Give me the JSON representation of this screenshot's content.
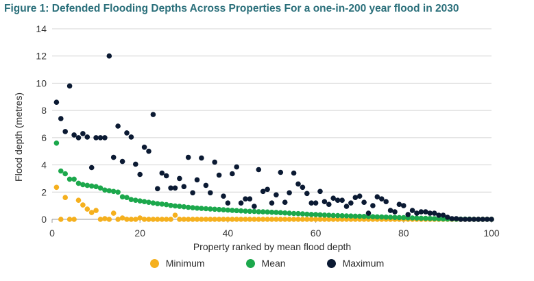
{
  "chart_data": {
    "type": "scatter",
    "title": "Figure 1: Defended Flooding Depths Across Properties For a one-in-200 year flood in 2030",
    "xlabel": "Property ranked by mean flood depth",
    "ylabel": "Flood depth (metres)",
    "xlim": [
      0,
      100
    ],
    "ylim": [
      0,
      14
    ],
    "xticks": [
      0,
      20,
      40,
      60,
      80,
      100
    ],
    "yticks": [
      0,
      2,
      4,
      6,
      8,
      10,
      12,
      14
    ],
    "grid": "horizontal",
    "legend_position": "bottom",
    "series": [
      {
        "name": "Minimum",
        "color": "#f5b01e",
        "points": [
          [
            1,
            2.35
          ],
          [
            2,
            0.0
          ],
          [
            3,
            1.6
          ],
          [
            4,
            0.0
          ],
          [
            5,
            0.0
          ],
          [
            6,
            1.4
          ],
          [
            7,
            1.05
          ],
          [
            8,
            0.75
          ],
          [
            9,
            0.5
          ],
          [
            10,
            0.65
          ],
          [
            11,
            0.0
          ],
          [
            12,
            0.05
          ],
          [
            13,
            0.0
          ],
          [
            14,
            0.45
          ],
          [
            15,
            0.0
          ],
          [
            16,
            0.1
          ],
          [
            17,
            0.0
          ],
          [
            18,
            0.0
          ],
          [
            19,
            0.0
          ],
          [
            20,
            0.1
          ],
          [
            21,
            0.0
          ],
          [
            22,
            0.0
          ],
          [
            23,
            0.0
          ],
          [
            24,
            0.0
          ],
          [
            25,
            0.0
          ],
          [
            26,
            0.0
          ],
          [
            27,
            0.0
          ],
          [
            28,
            0.3
          ],
          [
            29,
            0.0
          ],
          [
            30,
            0.0
          ],
          [
            31,
            0.0
          ],
          [
            32,
            0.0
          ],
          [
            33,
            0.0
          ],
          [
            34,
            0.0
          ],
          [
            35,
            0.0
          ],
          [
            36,
            0.0
          ],
          [
            37,
            0.0
          ],
          [
            38,
            0.0
          ],
          [
            39,
            0.0
          ],
          [
            40,
            0.0
          ],
          [
            41,
            0.0
          ],
          [
            42,
            0.0
          ],
          [
            43,
            0.0
          ],
          [
            44,
            0.0
          ],
          [
            45,
            0.0
          ],
          [
            46,
            0.0
          ],
          [
            47,
            0.0
          ],
          [
            48,
            0.0
          ],
          [
            49,
            0.0
          ],
          [
            50,
            0.0
          ],
          [
            51,
            0.0
          ],
          [
            52,
            0.0
          ],
          [
            53,
            0.0
          ],
          [
            54,
            0.0
          ],
          [
            55,
            0.0
          ],
          [
            56,
            0.0
          ],
          [
            57,
            0.0
          ],
          [
            58,
            0.0
          ],
          [
            59,
            0.0
          ],
          [
            60,
            0.0
          ],
          [
            61,
            0.0
          ],
          [
            62,
            0.0
          ],
          [
            63,
            0.0
          ],
          [
            64,
            0.0
          ],
          [
            65,
            0.0
          ],
          [
            66,
            0.0
          ],
          [
            67,
            0.0
          ],
          [
            68,
            0.0
          ],
          [
            69,
            0.0
          ],
          [
            70,
            0.0
          ],
          [
            71,
            0.0
          ],
          [
            72,
            0.0
          ],
          [
            73,
            0.0
          ],
          [
            74,
            0.0
          ],
          [
            75,
            0.0
          ],
          [
            76,
            0.0
          ],
          [
            77,
            0.0
          ],
          [
            78,
            0.0
          ],
          [
            79,
            0.0
          ],
          [
            80,
            0.0
          ],
          [
            81,
            0.0
          ],
          [
            82,
            0.0
          ],
          [
            83,
            0.0
          ],
          [
            84,
            0.0
          ],
          [
            85,
            0.0
          ],
          [
            86,
            0.0
          ],
          [
            87,
            0.0
          ],
          [
            88,
            0.0
          ],
          [
            89,
            0.0
          ],
          [
            90,
            0.0
          ],
          [
            91,
            0.0
          ],
          [
            92,
            0.0
          ],
          [
            93,
            0.0
          ],
          [
            94,
            0.0
          ],
          [
            95,
            0.0
          ],
          [
            96,
            0.0
          ],
          [
            97,
            0.0
          ],
          [
            98,
            0.0
          ],
          [
            99,
            0.0
          ],
          [
            100,
            0.0
          ]
        ]
      },
      {
        "name": "Mean",
        "color": "#1ca84c",
        "points": [
          [
            1,
            5.6
          ],
          [
            2,
            3.55
          ],
          [
            3,
            3.35
          ],
          [
            4,
            2.95
          ],
          [
            5,
            2.95
          ],
          [
            6,
            2.65
          ],
          [
            7,
            2.55
          ],
          [
            8,
            2.5
          ],
          [
            9,
            2.45
          ],
          [
            10,
            2.4
          ],
          [
            11,
            2.3
          ],
          [
            12,
            2.15
          ],
          [
            13,
            2.1
          ],
          [
            14,
            2.05
          ],
          [
            15,
            2.0
          ],
          [
            16,
            1.65
          ],
          [
            17,
            1.6
          ],
          [
            18,
            1.45
          ],
          [
            19,
            1.4
          ],
          [
            20,
            1.35
          ],
          [
            21,
            1.3
          ],
          [
            22,
            1.25
          ],
          [
            23,
            1.2
          ],
          [
            24,
            1.15
          ],
          [
            25,
            1.12
          ],
          [
            26,
            1.08
          ],
          [
            27,
            1.02
          ],
          [
            28,
            0.98
          ],
          [
            29,
            0.95
          ],
          [
            30,
            0.92
          ],
          [
            31,
            0.88
          ],
          [
            32,
            0.85
          ],
          [
            33,
            0.82
          ],
          [
            34,
            0.8
          ],
          [
            35,
            0.78
          ],
          [
            36,
            0.76
          ],
          [
            37,
            0.74
          ],
          [
            38,
            0.72
          ],
          [
            39,
            0.7
          ],
          [
            40,
            0.68
          ],
          [
            41,
            0.66
          ],
          [
            42,
            0.64
          ],
          [
            43,
            0.62
          ],
          [
            44,
            0.6
          ],
          [
            45,
            0.59
          ],
          [
            46,
            0.58
          ],
          [
            47,
            0.56
          ],
          [
            48,
            0.55
          ],
          [
            49,
            0.54
          ],
          [
            50,
            0.52
          ],
          [
            51,
            0.51
          ],
          [
            52,
            0.49
          ],
          [
            53,
            0.47
          ],
          [
            54,
            0.45
          ],
          [
            55,
            0.43
          ],
          [
            56,
            0.42
          ],
          [
            57,
            0.4
          ],
          [
            58,
            0.38
          ],
          [
            59,
            0.36
          ],
          [
            60,
            0.35
          ],
          [
            61,
            0.33
          ],
          [
            62,
            0.31
          ],
          [
            63,
            0.3
          ],
          [
            64,
            0.28
          ],
          [
            65,
            0.27
          ],
          [
            66,
            0.26
          ],
          [
            67,
            0.25
          ],
          [
            68,
            0.24
          ],
          [
            69,
            0.23
          ],
          [
            70,
            0.22
          ],
          [
            71,
            0.21
          ],
          [
            72,
            0.2
          ],
          [
            73,
            0.19
          ],
          [
            74,
            0.18
          ],
          [
            75,
            0.17
          ],
          [
            76,
            0.16
          ],
          [
            77,
            0.15
          ],
          [
            78,
            0.14
          ],
          [
            79,
            0.13
          ],
          [
            80,
            0.12
          ],
          [
            81,
            0.11
          ],
          [
            82,
            0.1
          ],
          [
            83,
            0.09
          ],
          [
            84,
            0.08
          ],
          [
            85,
            0.07
          ],
          [
            86,
            0.06
          ],
          [
            87,
            0.05
          ],
          [
            88,
            0.04
          ],
          [
            89,
            0.03
          ],
          [
            90,
            0.02
          ],
          [
            91,
            0.02
          ],
          [
            92,
            0.01
          ],
          [
            93,
            0.01
          ],
          [
            94,
            0.01
          ],
          [
            95,
            0.01
          ],
          [
            96,
            0.0
          ],
          [
            97,
            0.0
          ],
          [
            98,
            0.0
          ],
          [
            99,
            0.0
          ],
          [
            100,
            0.0
          ]
        ]
      },
      {
        "name": "Maximum",
        "color": "#0b1a33",
        "points": [
          [
            1,
            8.6
          ],
          [
            2,
            7.4
          ],
          [
            3,
            6.45
          ],
          [
            4,
            9.8
          ],
          [
            5,
            6.2
          ],
          [
            6,
            6.0
          ],
          [
            7,
            6.3
          ],
          [
            8,
            6.05
          ],
          [
            9,
            3.8
          ],
          [
            10,
            6.0
          ],
          [
            11,
            6.0
          ],
          [
            12,
            6.0
          ],
          [
            13,
            12.0
          ],
          [
            14,
            4.55
          ],
          [
            15,
            6.85
          ],
          [
            16,
            4.25
          ],
          [
            17,
            6.35
          ],
          [
            18,
            6.05
          ],
          [
            19,
            4.05
          ],
          [
            20,
            3.3
          ],
          [
            21,
            5.3
          ],
          [
            22,
            5.0
          ],
          [
            23,
            7.7
          ],
          [
            24,
            2.25
          ],
          [
            25,
            3.4
          ],
          [
            26,
            3.2
          ],
          [
            27,
            2.3
          ],
          [
            28,
            2.3
          ],
          [
            29,
            3.0
          ],
          [
            30,
            2.4
          ],
          [
            31,
            4.55
          ],
          [
            32,
            1.95
          ],
          [
            33,
            2.9
          ],
          [
            34,
            4.5
          ],
          [
            35,
            2.5
          ],
          [
            36,
            1.95
          ],
          [
            37,
            4.2
          ],
          [
            38,
            3.25
          ],
          [
            39,
            1.7
          ],
          [
            40,
            1.2
          ],
          [
            41,
            3.35
          ],
          [
            42,
            3.85
          ],
          [
            43,
            1.2
          ],
          [
            44,
            1.5
          ],
          [
            45,
            1.5
          ],
          [
            46,
            0.95
          ],
          [
            47,
            3.65
          ],
          [
            48,
            2.05
          ],
          [
            49,
            2.2
          ],
          [
            50,
            1.2
          ],
          [
            51,
            1.8
          ],
          [
            52,
            3.45
          ],
          [
            53,
            1.25
          ],
          [
            54,
            1.95
          ],
          [
            55,
            3.4
          ],
          [
            56,
            2.6
          ],
          [
            57,
            2.35
          ],
          [
            58,
            1.9
          ],
          [
            59,
            1.2
          ],
          [
            60,
            1.2
          ],
          [
            61,
            2.05
          ],
          [
            62,
            1.3
          ],
          [
            63,
            1.1
          ],
          [
            64,
            1.55
          ],
          [
            65,
            1.4
          ],
          [
            66,
            1.4
          ],
          [
            67,
            0.95
          ],
          [
            68,
            1.2
          ],
          [
            69,
            1.6
          ],
          [
            70,
            1.7
          ],
          [
            71,
            1.25
          ],
          [
            72,
            0.45
          ],
          [
            73,
            1.0
          ],
          [
            74,
            1.65
          ],
          [
            75,
            1.5
          ],
          [
            76,
            1.3
          ],
          [
            77,
            0.65
          ],
          [
            78,
            0.55
          ],
          [
            79,
            1.1
          ],
          [
            80,
            1.0
          ],
          [
            81,
            0.35
          ],
          [
            82,
            0.65
          ],
          [
            83,
            0.45
          ],
          [
            84,
            0.55
          ],
          [
            85,
            0.55
          ],
          [
            86,
            0.45
          ],
          [
            87,
            0.45
          ],
          [
            88,
            0.3
          ],
          [
            89,
            0.3
          ],
          [
            90,
            0.15
          ],
          [
            91,
            0.05
          ],
          [
            92,
            0.05
          ],
          [
            93,
            0.0
          ],
          [
            94,
            0.0
          ],
          [
            95,
            0.0
          ],
          [
            96,
            0.0
          ],
          [
            97,
            0.0
          ],
          [
            98,
            0.0
          ],
          [
            99,
            0.0
          ],
          [
            100,
            0.0
          ]
        ]
      }
    ]
  }
}
